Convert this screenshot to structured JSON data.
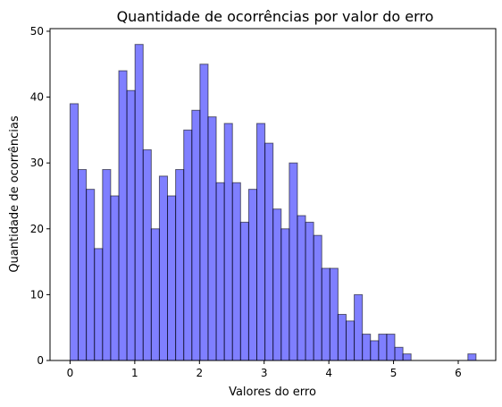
{
  "chart_data": {
    "type": "bar",
    "title": "Quantidade de ocorrências por valor do erro",
    "xlabel": "Valores do erro",
    "ylabel": "Quantidade de ocorrências",
    "bin_start": 0.0,
    "bin_width": 0.1255,
    "values": [
      39,
      29,
      26,
      17,
      29,
      25,
      44,
      41,
      48,
      32,
      20,
      28,
      25,
      29,
      35,
      38,
      45,
      37,
      27,
      36,
      27,
      21,
      26,
      36,
      33,
      23,
      20,
      30,
      22,
      21,
      19,
      14,
      14,
      7,
      6,
      10,
      4,
      3,
      4,
      4,
      2,
      1,
      0,
      0,
      0,
      0,
      0,
      0,
      0,
      1
    ],
    "xlim": [
      -0.31,
      6.58
    ],
    "ylim": [
      0,
      50.4
    ],
    "xticks": [
      0,
      1,
      2,
      3,
      4,
      5,
      6
    ],
    "yticks": [
      0,
      10,
      20,
      30,
      40,
      50
    ],
    "grid": false
  }
}
